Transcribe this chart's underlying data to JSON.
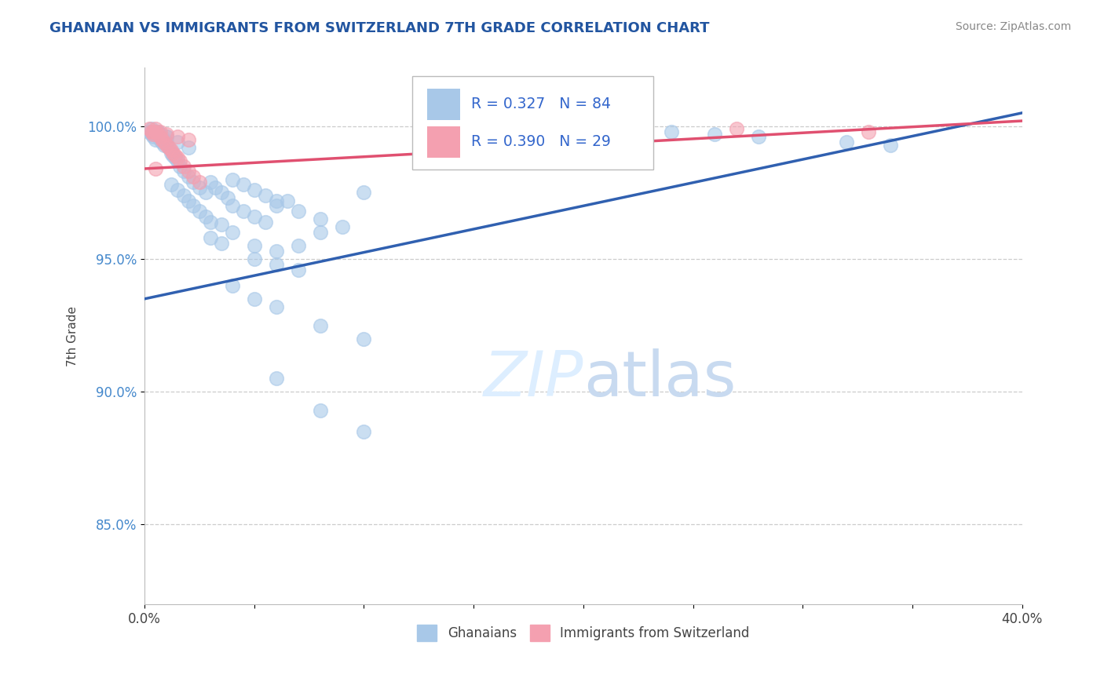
{
  "title": "GHANAIAN VS IMMIGRANTS FROM SWITZERLAND 7TH GRADE CORRELATION CHART",
  "source_text": "Source: ZipAtlas.com",
  "ylabel": "7th Grade",
  "xlim": [
    0.0,
    0.4
  ],
  "ylim": [
    0.82,
    1.022
  ],
  "xticks": [
    0.0,
    0.05,
    0.1,
    0.15,
    0.2,
    0.25,
    0.3,
    0.35,
    0.4
  ],
  "xtick_labels": [
    "0.0%",
    "",
    "",
    "",
    "",
    "",
    "",
    "",
    "40.0%"
  ],
  "yticks": [
    0.85,
    0.9,
    0.95,
    1.0
  ],
  "ytick_labels": [
    "85.0%",
    "90.0%",
    "95.0%",
    "100.0%"
  ],
  "r_blue": 0.327,
  "n_blue": 84,
  "r_pink": 0.39,
  "n_pink": 29,
  "blue_color": "#a8c8e8",
  "pink_color": "#f4a0b0",
  "blue_line_color": "#3060b0",
  "pink_line_color": "#e05070",
  "legend_label_blue": "Ghanaians",
  "legend_label_pink": "Immigrants from Switzerland",
  "title_color": "#2255a0",
  "source_color": "#888888",
  "watermark_color": "#ddeeff",
  "blue_line_x0": 0.0,
  "blue_line_y0": 0.935,
  "blue_line_x1": 0.4,
  "blue_line_y1": 1.005,
  "pink_line_x0": 0.0,
  "pink_line_y0": 0.984,
  "pink_line_x1": 0.4,
  "pink_line_y1": 1.002
}
